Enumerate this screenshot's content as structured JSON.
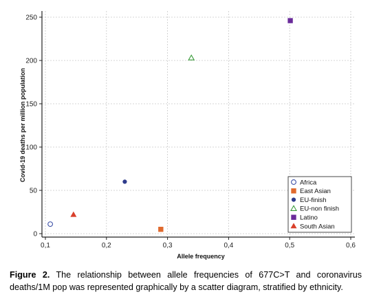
{
  "chart_data": {
    "type": "scatter",
    "xlabel": "Allele frequency",
    "ylabel": "Covid-19 deaths per million population",
    "xlim": [
      0.1,
      0.6
    ],
    "ylim": [
      0,
      250
    ],
    "x_ticks": [
      "0,1",
      "0,2",
      "0,3",
      "0,4",
      "0,5",
      "0,6"
    ],
    "y_ticks": [
      "0",
      "50",
      "100",
      "150",
      "200",
      "250"
    ],
    "grid": true,
    "legend_position": "bottom-right",
    "series": [
      {
        "name": "Africa",
        "x": 0.108,
        "y": 11,
        "marker": "open-circle",
        "color": "#3b4fa6"
      },
      {
        "name": "East Asian",
        "x": 0.289,
        "y": 5,
        "marker": "square",
        "color": "#e06a2e"
      },
      {
        "name": "EU-finish",
        "x": 0.23,
        "y": 60,
        "marker": "circle",
        "color": "#2f3c8c"
      },
      {
        "name": "EU-non finish",
        "x": 0.339,
        "y": 203,
        "marker": "open-triangle",
        "color": "#3a9b3a"
      },
      {
        "name": "Latino",
        "x": 0.501,
        "y": 246,
        "marker": "square",
        "color": "#6a2b9a"
      },
      {
        "name": "South Asian",
        "x": 0.146,
        "y": 22,
        "marker": "triangle",
        "color": "#d9402b"
      }
    ]
  },
  "caption": {
    "label": "Figure 2.",
    "text": " The relationship between allele frequencies of 677C>T and  coronavirus deaths/1M pop  was represented graphically by a scatter diagram, stratified by ethnicity."
  }
}
